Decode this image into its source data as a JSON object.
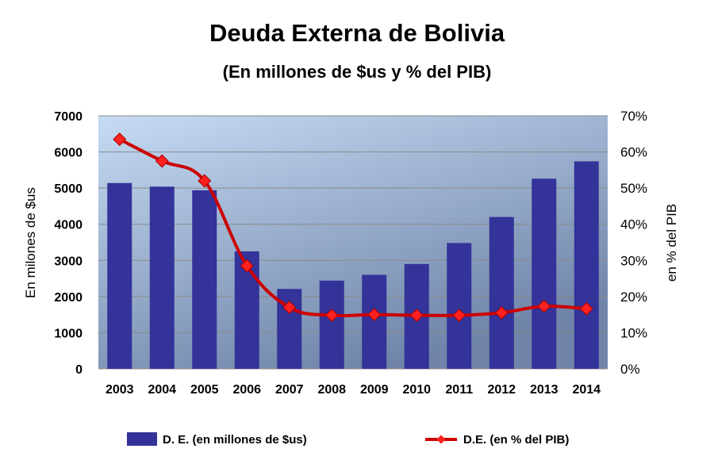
{
  "chart_data": {
    "type": "bar+line",
    "title": "Deuda Externa de Bolivia",
    "subtitle": "(En millones de $us y % del PIB)",
    "categories": [
      "2003",
      "2004",
      "2005",
      "2006",
      "2007",
      "2008",
      "2009",
      "2010",
      "2011",
      "2012",
      "2013",
      "2014"
    ],
    "series": [
      {
        "name": "D. E.  (en millones de $us)",
        "type": "bar",
        "axis": "left",
        "color": "#333399",
        "values": [
          5140,
          5040,
          4940,
          3250,
          2210,
          2440,
          2600,
          2900,
          3480,
          4200,
          5260,
          5740
        ]
      },
      {
        "name": "D.E. (en % del PIB)",
        "type": "line",
        "axis": "right",
        "color": "#cc0000",
        "marker_color": "#ff2020",
        "values": [
          63.5,
          57.5,
          52.0,
          28.5,
          17.0,
          14.8,
          15.0,
          14.8,
          14.8,
          15.5,
          17.3,
          16.6
        ]
      }
    ],
    "ylabel": "En milones de $us",
    "ylabel_right": "en % del PIB",
    "ylim": [
      0,
      7000
    ],
    "ylim_right": [
      0,
      70
    ],
    "yticks": [
      "0",
      "1000",
      "2000",
      "3000",
      "4000",
      "5000",
      "6000",
      "7000"
    ],
    "yticks_right": [
      "0%",
      "10%",
      "20%",
      "30%",
      "40%",
      "50%",
      "60%",
      "70%"
    ],
    "grid": true,
    "legend_position": "bottom",
    "plot_background": {
      "top": "#c6dbf3",
      "bottom": "#6f84a8"
    }
  }
}
